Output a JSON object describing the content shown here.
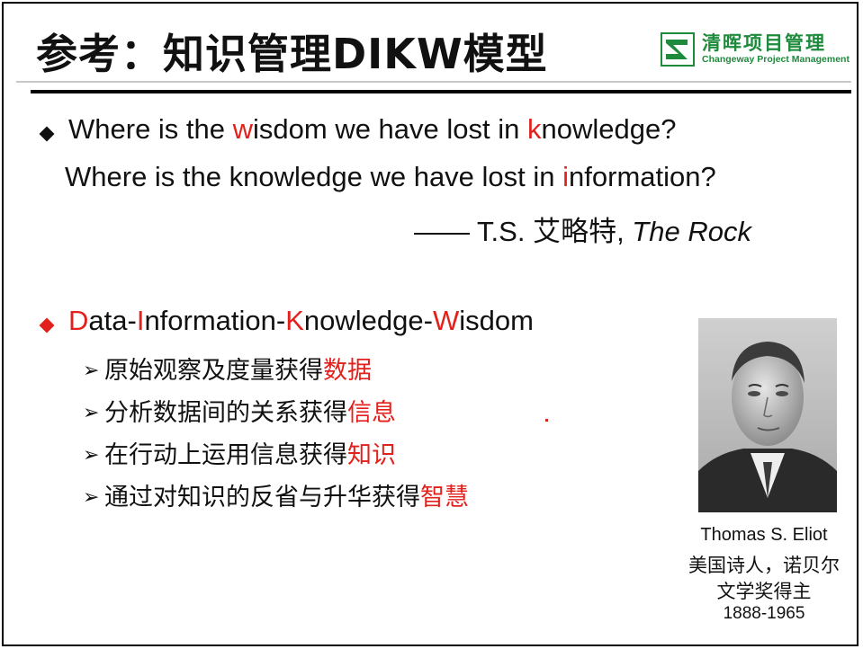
{
  "slide": {
    "title": "参考：知识管理DIKW模型",
    "logo": {
      "name_cn": "清晖项目管理",
      "name_en": "Changeway Project Management",
      "brand_color": "#1e8a3c"
    },
    "accent_color": "#e3211c",
    "quote": {
      "line1": {
        "p1": "Where is the ",
        "hl": "w",
        "p2": "isdom we have lost in ",
        "hl2": "k",
        "p3": "nowledge?"
      },
      "line2": {
        "p1": "Where is the knowledge we have lost in ",
        "hl": "i",
        "p2": "nformation?"
      },
      "attribution": {
        "prefix": "—— T.S. 艾略特, ",
        "work": "The Rock"
      }
    },
    "dikw": {
      "heading": {
        "d": "D",
        "ata": "ata-",
        "i": "I",
        "nformation": "nformation-",
        "k": "K",
        "nowledge": "nowledge-",
        "w": "W",
        "isdom": "isdom"
      },
      "items": [
        {
          "text": "原始观察及度量获得",
          "highlight": "数据"
        },
        {
          "text": "分析数据间的关系获得",
          "highlight": "信息"
        },
        {
          "text": "在行动上运用信息获得",
          "highlight": "知识"
        },
        {
          "text": "通过对知识的反省与升华获得",
          "highlight": "智慧"
        }
      ]
    },
    "portrait": {
      "name": "Thomas S. Eliot",
      "desc_line1": "美国诗人，诺贝尔",
      "desc_line2": "文学奖得主",
      "years": "1888-1965"
    }
  }
}
